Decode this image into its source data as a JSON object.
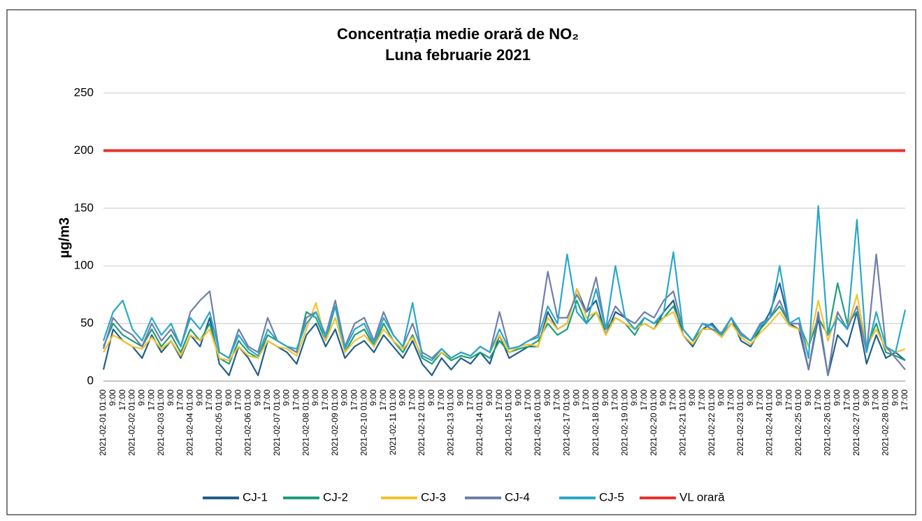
{
  "chart_data": {
    "type": "line",
    "title": "Concentrația medie orară de NO₂",
    "subtitle": "Luna februarie 2021",
    "y_label": "µg/m3",
    "categories": [
      "2021-02-01 01:00",
      "9:00",
      "17:00",
      "2021-02-02 01:00",
      "9:00",
      "17:00",
      "2021-02-03 01:00",
      "9:00",
      "17:00",
      "2021-02-04 01:00",
      "9:00",
      "17:00",
      "2021-02-05 01:00",
      "9:00",
      "17:00",
      "2021-02-06 01:00",
      "9:00",
      "17:00",
      "2021-02-07 01:00",
      "9:00",
      "17:00",
      "2021-02-08 01:00",
      "9:00",
      "17:00",
      "2021-02-09 01:00",
      "9:00",
      "17:00",
      "2021-02-10 01:00",
      "9:00",
      "17:00",
      "2021-02-11 01:00",
      "9:00",
      "17:00",
      "2021-02-12 01:00",
      "9:00",
      "17:00",
      "2021-02-13 01:00",
      "9:00",
      "17:00",
      "2021-02-14 01:00",
      "9:00",
      "17:00",
      "2021-02-15 01:00",
      "9:00",
      "17:00",
      "2021-02-16 01:00",
      "9:00",
      "17:00",
      "2021-02-17 01:00",
      "9:00",
      "17:00",
      "2021-02-18 01:00",
      "9:00",
      "17:00",
      "2021-02-19 01:00",
      "9:00",
      "17:00",
      "2021-02-20 01:00",
      "9:00",
      "17:00",
      "2021-02-21 01:00",
      "9:00",
      "17:00",
      "2021-02-22 01:00",
      "9:00",
      "17:00",
      "2021-02-23 01:00",
      "9:00",
      "17:00",
      "2021-02-24 01:00",
      "9:00",
      "17:00",
      "2021-02-25 01:00",
      "9:00",
      "17:00",
      "2021-02-26 01:00",
      "9:00",
      "17:00",
      "2021-02-27 01:00",
      "9:00",
      "17:00",
      "2021-02-28 01:00",
      "9:00",
      "17:00"
    ],
    "series": [
      {
        "name": "CJ-1",
        "color": "#1f5f8b",
        "values": [
          10,
          45,
          35,
          30,
          20,
          40,
          25,
          35,
          20,
          40,
          30,
          55,
          15,
          5,
          30,
          20,
          5,
          35,
          30,
          25,
          15,
          40,
          50,
          30,
          45,
          20,
          30,
          35,
          25,
          40,
          30,
          20,
          35,
          15,
          5,
          20,
          10,
          20,
          15,
          25,
          15,
          40,
          20,
          25,
          30,
          30,
          60,
          45,
          50,
          80,
          60,
          70,
          40,
          60,
          55,
          45,
          50,
          45,
          60,
          70,
          40,
          30,
          45,
          50,
          40,
          55,
          35,
          30,
          45,
          60,
          85,
          50,
          45,
          10,
          55,
          5,
          40,
          30,
          60,
          15,
          40,
          20,
          25,
          18
        ]
      },
      {
        "name": "CJ-2",
        "color": "#1f9e78",
        "values": [
          30,
          50,
          40,
          35,
          30,
          45,
          30,
          40,
          25,
          45,
          35,
          50,
          20,
          15,
          35,
          25,
          20,
          40,
          35,
          30,
          25,
          60,
          55,
          35,
          65,
          25,
          40,
          45,
          30,
          50,
          35,
          25,
          40,
          20,
          15,
          25,
          18,
          22,
          20,
          25,
          20,
          35,
          25,
          28,
          30,
          35,
          50,
          40,
          45,
          70,
          50,
          60,
          45,
          55,
          50,
          40,
          55,
          50,
          55,
          65,
          45,
          35,
          45,
          45,
          40,
          50,
          40,
          35,
          45,
          55,
          65,
          50,
          50,
          30,
          55,
          40,
          85,
          50,
          60,
          30,
          50,
          25,
          22,
          18
        ]
      },
      {
        "name": "CJ-3",
        "color": "#f5c230",
        "values": [
          25,
          40,
          35,
          30,
          28,
          38,
          28,
          35,
          22,
          40,
          35,
          45,
          20,
          18,
          30,
          22,
          20,
          35,
          30,
          28,
          22,
          45,
          68,
          35,
          55,
          25,
          35,
          40,
          30,
          45,
          35,
          28,
          38,
          22,
          18,
          25,
          20,
          25,
          22,
          30,
          25,
          40,
          25,
          30,
          32,
          30,
          55,
          45,
          50,
          80,
          55,
          60,
          40,
          55,
          50,
          45,
          50,
          45,
          55,
          60,
          40,
          32,
          45,
          45,
          38,
          50,
          38,
          32,
          42,
          50,
          60,
          48,
          45,
          30,
          70,
          35,
          60,
          45,
          75,
          30,
          45,
          28,
          25,
          28
        ]
      },
      {
        "name": "CJ-4",
        "color": "#6f7fa8",
        "values": [
          28,
          55,
          45,
          40,
          30,
          50,
          35,
          45,
          30,
          60,
          70,
          78,
          25,
          20,
          45,
          30,
          25,
          55,
          35,
          30,
          25,
          55,
          60,
          40,
          70,
          30,
          50,
          55,
          35,
          60,
          40,
          30,
          50,
          25,
          20,
          28,
          20,
          25,
          22,
          30,
          25,
          60,
          28,
          30,
          35,
          40,
          95,
          55,
          55,
          75,
          60,
          90,
          45,
          65,
          55,
          50,
          60,
          55,
          70,
          78,
          45,
          35,
          50,
          45,
          42,
          55,
          42,
          35,
          50,
          55,
          70,
          50,
          50,
          10,
          60,
          5,
          60,
          45,
          65,
          25,
          110,
          30,
          20,
          10
        ]
      },
      {
        "name": "CJ-5",
        "color": "#2aa7c9",
        "values": [
          35,
          60,
          70,
          45,
          35,
          55,
          40,
          50,
          30,
          55,
          45,
          60,
          25,
          20,
          40,
          28,
          22,
          45,
          35,
          30,
          28,
          50,
          60,
          38,
          65,
          28,
          45,
          50,
          32,
          55,
          40,
          30,
          68,
          22,
          18,
          28,
          20,
          25,
          22,
          30,
          25,
          45,
          28,
          30,
          35,
          38,
          65,
          50,
          110,
          60,
          50,
          80,
          45,
          100,
          55,
          45,
          55,
          50,
          60,
          112,
          45,
          35,
          50,
          48,
          40,
          55,
          40,
          35,
          48,
          55,
          100,
          50,
          55,
          20,
          152,
          40,
          55,
          45,
          140,
          25,
          60,
          30,
          25,
          62
        ]
      },
      {
        "name": "VL orară",
        "color": "#e8322d",
        "values": [
          200,
          200,
          200,
          200,
          200,
          200,
          200,
          200,
          200,
          200,
          200,
          200,
          200,
          200,
          200,
          200,
          200,
          200,
          200,
          200,
          200,
          200,
          200,
          200,
          200,
          200,
          200,
          200,
          200,
          200,
          200,
          200,
          200,
          200,
          200,
          200,
          200,
          200,
          200,
          200,
          200,
          200,
          200,
          200,
          200,
          200,
          200,
          200,
          200,
          200,
          200,
          200,
          200,
          200,
          200,
          200,
          200,
          200,
          200,
          200,
          200,
          200,
          200,
          200,
          200,
          200,
          200,
          200,
          200,
          200,
          200,
          200,
          200,
          200,
          200,
          200,
          200,
          200,
          200,
          200,
          200,
          200,
          200,
          200
        ]
      }
    ],
    "ylim": [
      0,
      250
    ],
    "yticks": [
      0,
      50,
      100,
      150,
      200,
      250
    ],
    "grid": true
  }
}
